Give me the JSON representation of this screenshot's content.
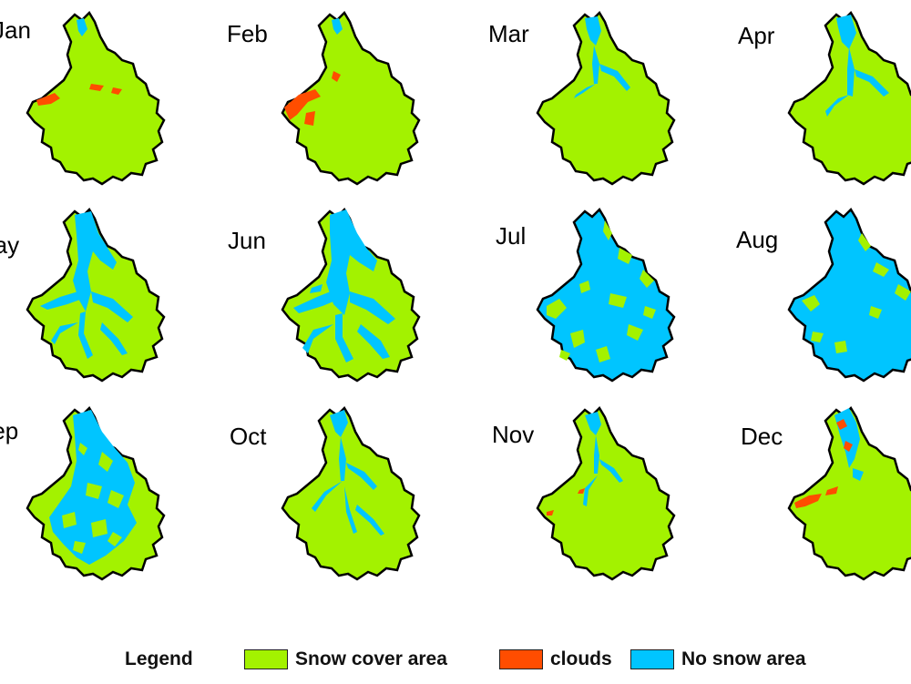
{
  "colors": {
    "snow": "#a3f200",
    "clouds": "#ff4d00",
    "no_snow": "#00c5ff",
    "outline": "#000000"
  },
  "months": [
    {
      "label": "Jan",
      "row": 0,
      "col": 0
    },
    {
      "label": "Feb",
      "row": 0,
      "col": 1
    },
    {
      "label": "Mar",
      "row": 0,
      "col": 2
    },
    {
      "label": "Apr",
      "row": 0,
      "col": 3
    },
    {
      "label": "May",
      "row": 1,
      "col": 0
    },
    {
      "label": "Jun",
      "row": 1,
      "col": 1
    },
    {
      "label": "Jul",
      "row": 1,
      "col": 2
    },
    {
      "label": "Aug",
      "row": 1,
      "col": 3
    },
    {
      "label": "Sep",
      "row": 2,
      "col": 0
    },
    {
      "label": "Oct",
      "row": 2,
      "col": 1
    },
    {
      "label": "Nov",
      "row": 2,
      "col": 2
    },
    {
      "label": "Dec",
      "row": 2,
      "col": 3
    }
  ],
  "legend": {
    "title": "Legend",
    "items": [
      {
        "label": "Snow cover area",
        "color_key": "snow"
      },
      {
        "label": "clouds",
        "color_key": "clouds"
      },
      {
        "label": "No snow area",
        "color_key": "no_snow"
      }
    ]
  }
}
